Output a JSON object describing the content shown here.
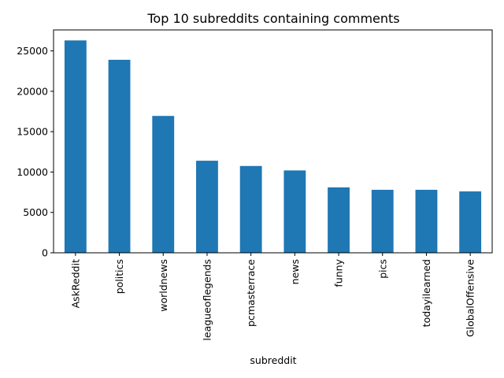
{
  "chart_data": {
    "type": "bar",
    "title": "Top 10 subreddits containing comments",
    "xlabel": "subreddit",
    "ylabel": "",
    "categories": [
      "AskReddit",
      "politics",
      "worldnews",
      "leagueoflegends",
      "pcmasterrace",
      "news",
      "funny",
      "pics",
      "todayilearned",
      "GlobalOffensive"
    ],
    "values": [
      26300,
      23900,
      16950,
      11400,
      10750,
      10200,
      8100,
      7800,
      7800,
      7600
    ],
    "ylim": [
      0,
      27600
    ],
    "yticks": [
      0,
      5000,
      10000,
      15000,
      20000,
      25000
    ],
    "ytick_labels": [
      "0",
      "5000",
      "10000",
      "15000",
      "20000",
      "25000"
    ],
    "bar_color": "#1f77b4",
    "grid": false,
    "legend": "none"
  }
}
